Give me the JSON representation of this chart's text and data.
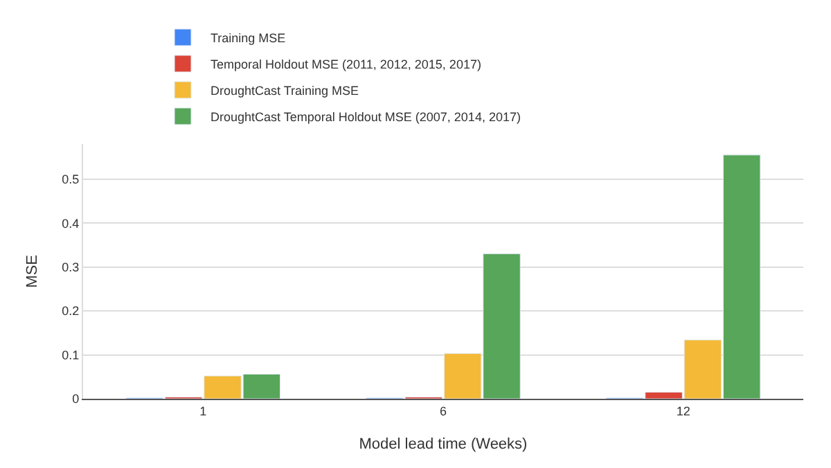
{
  "chart_data": {
    "type": "bar",
    "categories": [
      "1",
      "6",
      "12"
    ],
    "xlabel": "Model lead time (Weeks)",
    "ylabel": "MSE",
    "series": [
      {
        "name": "Training MSE",
        "color": "#4285f4",
        "values": [
          0.002,
          0.002,
          0.002
        ]
      },
      {
        "name": "Temporal Holdout MSE (2011, 2012, 2015, 2017)",
        "color": "#db4437",
        "values": [
          0.004,
          0.004,
          0.015
        ]
      },
      {
        "name": "DroughtCast Training MSE",
        "color": "#f4b937",
        "values": [
          0.052,
          0.103,
          0.134
        ]
      },
      {
        "name": "DroughtCast Temporal Holdout MSE (2007, 2014, 2017)",
        "color": "#57a65a",
        "values": [
          0.056,
          0.33,
          0.555
        ]
      }
    ],
    "ylim": [
      0,
      0.58
    ],
    "yticks": [
      0,
      0.1,
      0.2,
      0.3,
      0.4,
      0.5
    ],
    "grid": "y",
    "legend": "top"
  }
}
